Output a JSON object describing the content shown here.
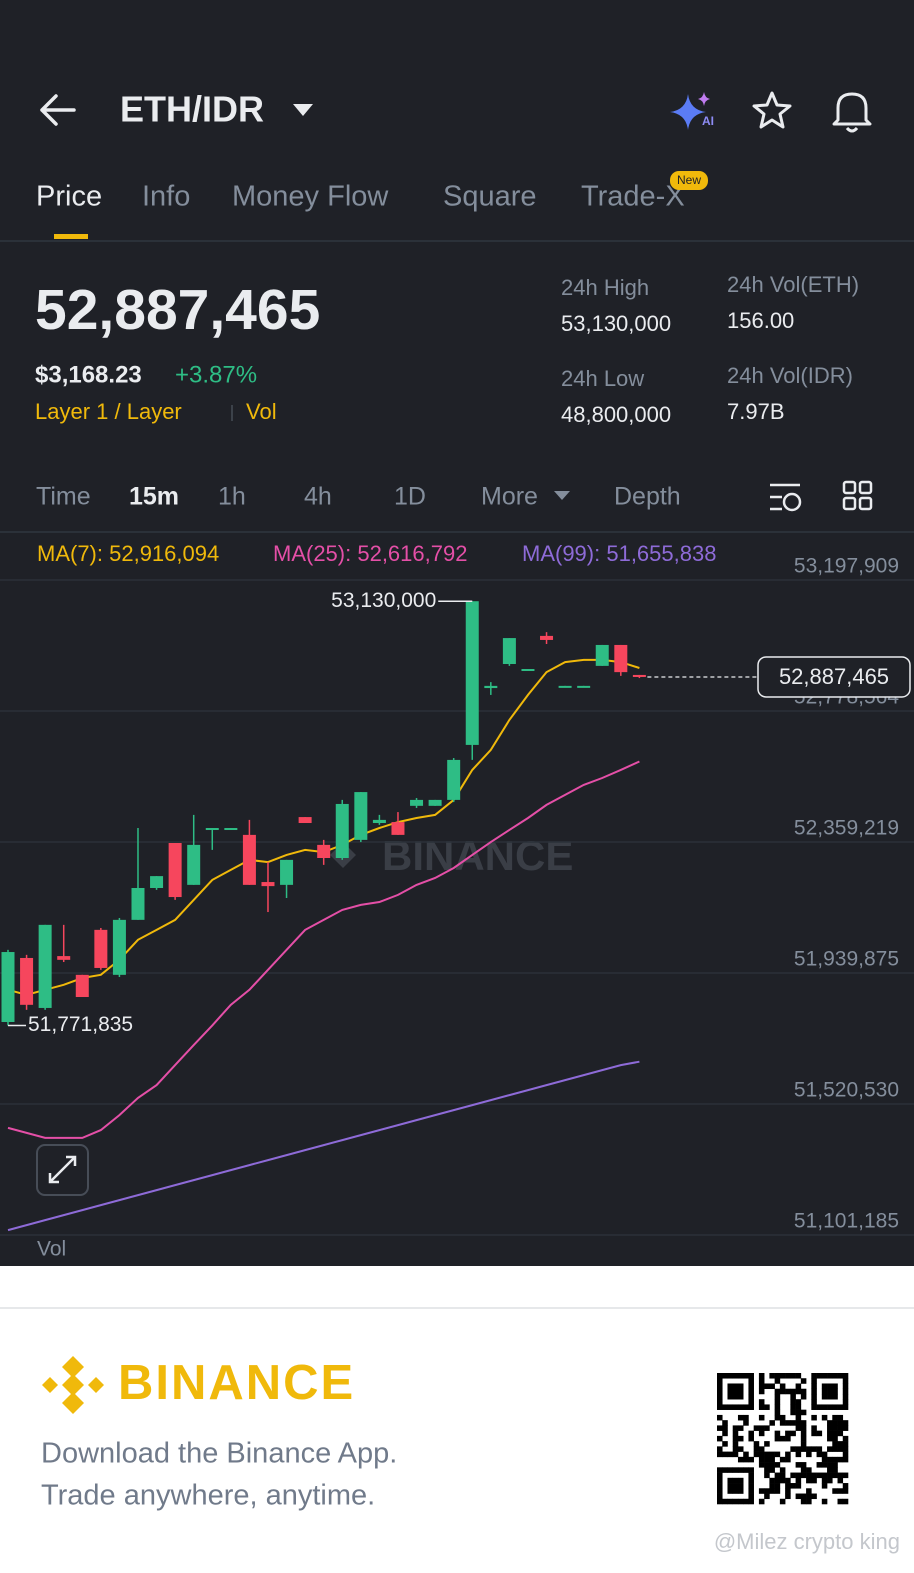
{
  "header": {
    "title": "ETH/IDR"
  },
  "tabs": {
    "items": [
      "Price",
      "Info",
      "Money Flow",
      "Square",
      "Trade-X"
    ],
    "badge": "New"
  },
  "summary": {
    "price": "52,887,465",
    "usd": "$3,168.23",
    "change": "+3.87%",
    "tag": "Layer 1 / Layer",
    "tag2": "Vol",
    "stats": [
      {
        "label": "24h High",
        "value": "53,130,000"
      },
      {
        "label": "24h Vol(ETH)",
        "value": "156.00"
      },
      {
        "label": "24h Low",
        "value": "48,800,000"
      },
      {
        "label": "24h Vol(IDR)",
        "value": "7.97B"
      }
    ]
  },
  "toolbar": [
    "Time",
    "15m",
    "1h",
    "4h",
    "1D",
    "More",
    "Depth"
  ],
  "chart_data": {
    "type": "candlestick",
    "categories": [
      null,
      null,
      null,
      null,
      null,
      null,
      null,
      null,
      null,
      null,
      null,
      null,
      null,
      null,
      null,
      null,
      null,
      null,
      null,
      null,
      null,
      null,
      null,
      null,
      null,
      null,
      null,
      null,
      null,
      null,
      null,
      null,
      null,
      null,
      null
    ],
    "open": [
      51783000,
      51988000,
      51828000,
      51994000,
      51934000,
      52078000,
      51934000,
      52110000,
      52212000,
      52356000,
      52222000,
      52398000,
      52398000,
      52382000,
      52231000,
      52222000,
      52439000,
      52350000,
      52308000,
      52366000,
      52420000,
      52423000,
      52475000,
      52475000,
      52494000,
      52670000,
      52852000,
      52929000,
      52910000,
      53019000,
      52855000,
      52855000,
      52923000,
      52990000,
      52894000
    ],
    "high": [
      52014000,
      51998000,
      52094000,
      52094000,
      51934000,
      52084000,
      52116000,
      52404000,
      52250000,
      52356000,
      52446000,
      52404000,
      52404000,
      52430000,
      52295000,
      52302000,
      52439000,
      52366000,
      52494000,
      52519000,
      52446000,
      52455000,
      52500000,
      52494000,
      52628000,
      53130000,
      52871000,
      53012000,
      52913000,
      53031000,
      52859000,
      52859000,
      52990000,
      52990000,
      52894000
    ],
    "low": [
      51771835,
      51822000,
      51822000,
      51975000,
      51863000,
      51950000,
      51927000,
      52110000,
      52206000,
      52174000,
      52222000,
      52334000,
      52398000,
      52222000,
      52135000,
      52180000,
      52420000,
      52286000,
      52302000,
      52359000,
      52414000,
      52382000,
      52468000,
      52475000,
      52487000,
      52622000,
      52830000,
      52923000,
      52910000,
      52993000,
      52855000,
      52855000,
      52923000,
      52891000,
      52884000
    ],
    "close": [
      52007000,
      51838000,
      52094000,
      51982000,
      51863000,
      51956000,
      52110000,
      52212000,
      52250000,
      52183000,
      52350000,
      52404000,
      52404000,
      52222000,
      52218000,
      52302000,
      52420000,
      52308000,
      52481000,
      52519000,
      52430000,
      52382000,
      52494000,
      52494000,
      52622000,
      53130000,
      52859000,
      53012000,
      52913000,
      53006000,
      52859000,
      52859000,
      52990000,
      52903000,
      52887465
    ],
    "up_color": "#2ebd85",
    "down_color": "#f6465d",
    "series": [
      {
        "name": "MA(7): 52,916,094",
        "color": "#f0b90b",
        "values": [
          51886000,
          51870000,
          51886000,
          51902000,
          51924000,
          51934000,
          51982000,
          52046000,
          52078000,
          52110000,
          52174000,
          52238000,
          52270000,
          52302000,
          52295000,
          52318000,
          52334000,
          52327000,
          52350000,
          52382000,
          52404000,
          52423000,
          52436000,
          52446000,
          52494000,
          52590000,
          52654000,
          52750000,
          52830000,
          52903000,
          52935000,
          52942000,
          52942000,
          52935000,
          52916094
        ]
      },
      {
        "name": "MA(25): 52,616,792",
        "color": "#e44fa7",
        "values": [
          51444000,
          51428000,
          51412000,
          51412000,
          51412000,
          51437000,
          51485000,
          51540000,
          51581000,
          51645000,
          51709000,
          51772000,
          51838000,
          51886000,
          51950000,
          52014000,
          52078000,
          52110000,
          52142000,
          52158000,
          52167000,
          52190000,
          52222000,
          52244000,
          52276000,
          52318000,
          52359000,
          52398000,
          52436000,
          52478000,
          52510000,
          52542000,
          52564000,
          52590000,
          52616792
        ]
      },
      {
        "name": "MA(99): 51,655,838",
        "color": "#8e6bd8",
        "values": [
          51117000,
          51133000,
          51149000,
          51165000,
          51181000,
          51197000,
          51213000,
          51229000,
          51245000,
          51261000,
          51277000,
          51293000,
          51309000,
          51325000,
          51341000,
          51357000,
          51373000,
          51389000,
          51405000,
          51421000,
          51437000,
          51453000,
          51469000,
          51485000,
          51501000,
          51517000,
          51533000,
          51549000,
          51565000,
          51581000,
          51597000,
          51613000,
          51629000,
          51645000,
          51655838
        ]
      }
    ],
    "ylim": [
      51101185,
      53197909
    ],
    "yticks": [
      {
        "value": 53197909,
        "label": "53,197,909"
      },
      {
        "value": 52778564,
        "label": "52,778,564"
      },
      {
        "value": 52359219,
        "label": "52,359,219"
      },
      {
        "value": 51939875,
        "label": "51,939,875"
      },
      {
        "value": 51520530,
        "label": "51,520,530"
      },
      {
        "value": 51101185,
        "label": "51,101,185"
      }
    ],
    "grid": true,
    "annotations": [
      {
        "value": 53130000,
        "label": "53,130,000"
      },
      {
        "value": 51771835,
        "label": "51,771,835"
      }
    ],
    "last_price": {
      "value": 52887465,
      "label": "52,887,465"
    },
    "watermark": "BINANCE",
    "volume_label": "Vol"
  },
  "footer": {
    "brand": "BINANCE",
    "line1": "Download the Binance App.",
    "line2": "Trade anywhere, anytime.",
    "watermark": "@Milez crypto king"
  }
}
